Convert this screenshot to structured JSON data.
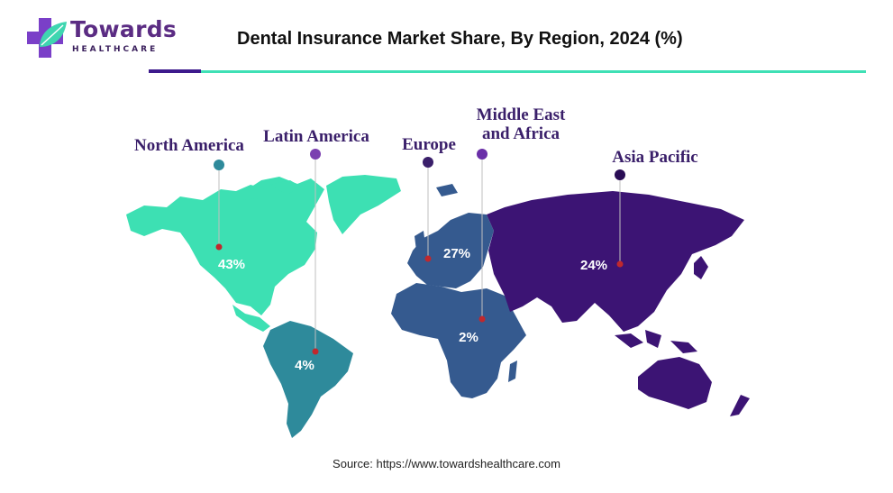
{
  "logo": {
    "name": "Towards",
    "sub": "HEALTHCARE"
  },
  "chart_data": {
    "type": "map",
    "title": "Dental Insurance Market Share, By Region, 2024 (%)",
    "categories": [
      "North America",
      "Latin America",
      "Europe",
      "Middle East and Africa",
      "Asia Pacific"
    ],
    "values": [
      43,
      4,
      27,
      2,
      24
    ],
    "value_labels": [
      "43%",
      "4%",
      "27%",
      "2%",
      "24%"
    ],
    "colors": [
      "#3de0b3",
      "#2e8a9b",
      "#355a8f",
      "#4a2a8c",
      "#3c1474"
    ],
    "label_lines": [
      [
        "North America"
      ],
      [
        "Latin America"
      ],
      [
        "Europe"
      ],
      [
        "Middle East",
        "and Africa"
      ],
      [
        "Asia Pacific"
      ]
    ],
    "dot_colors": [
      "#2e8a9b",
      "#7b3fb0",
      "#3a1f6a",
      "#6a2fa8",
      "#2a0d55"
    ]
  },
  "source": "Source: https://www.towardshealthcare.com"
}
